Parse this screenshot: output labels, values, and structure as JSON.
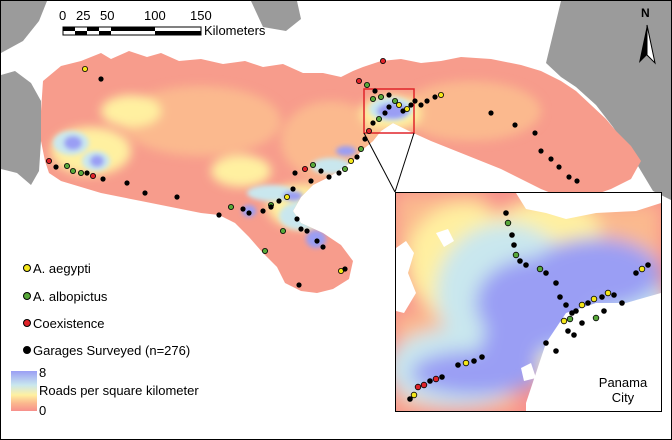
{
  "scale_bar": {
    "ticks": [
      "0",
      "25",
      "50",
      "100",
      "150"
    ],
    "unit_label": "Kilometers"
  },
  "north_arrow": {
    "label": "N",
    "icon": "north-arrow-icon"
  },
  "legend": {
    "items": [
      {
        "label": "A. aegypti",
        "color": "#f4e61a"
      },
      {
        "label": "A. albopictus",
        "color": "#58a83a"
      },
      {
        "label": "Coexistence",
        "color": "#e0242a"
      },
      {
        "label": "Garages Surveyed (n=276)",
        "color": "#000000"
      }
    ],
    "density": {
      "high": "8",
      "low": "0",
      "label": "Roads per square kilometer",
      "colors": [
        "#9a9ef4",
        "#c9e7ee",
        "#fff0a0",
        "#fbb98e",
        "#f7908c"
      ]
    }
  },
  "inset": {
    "city_label": "Panama City"
  },
  "colors": {
    "land_other": "#9b9b9b",
    "sea": "#ffffff",
    "panama_base": "#f79c8c"
  }
}
